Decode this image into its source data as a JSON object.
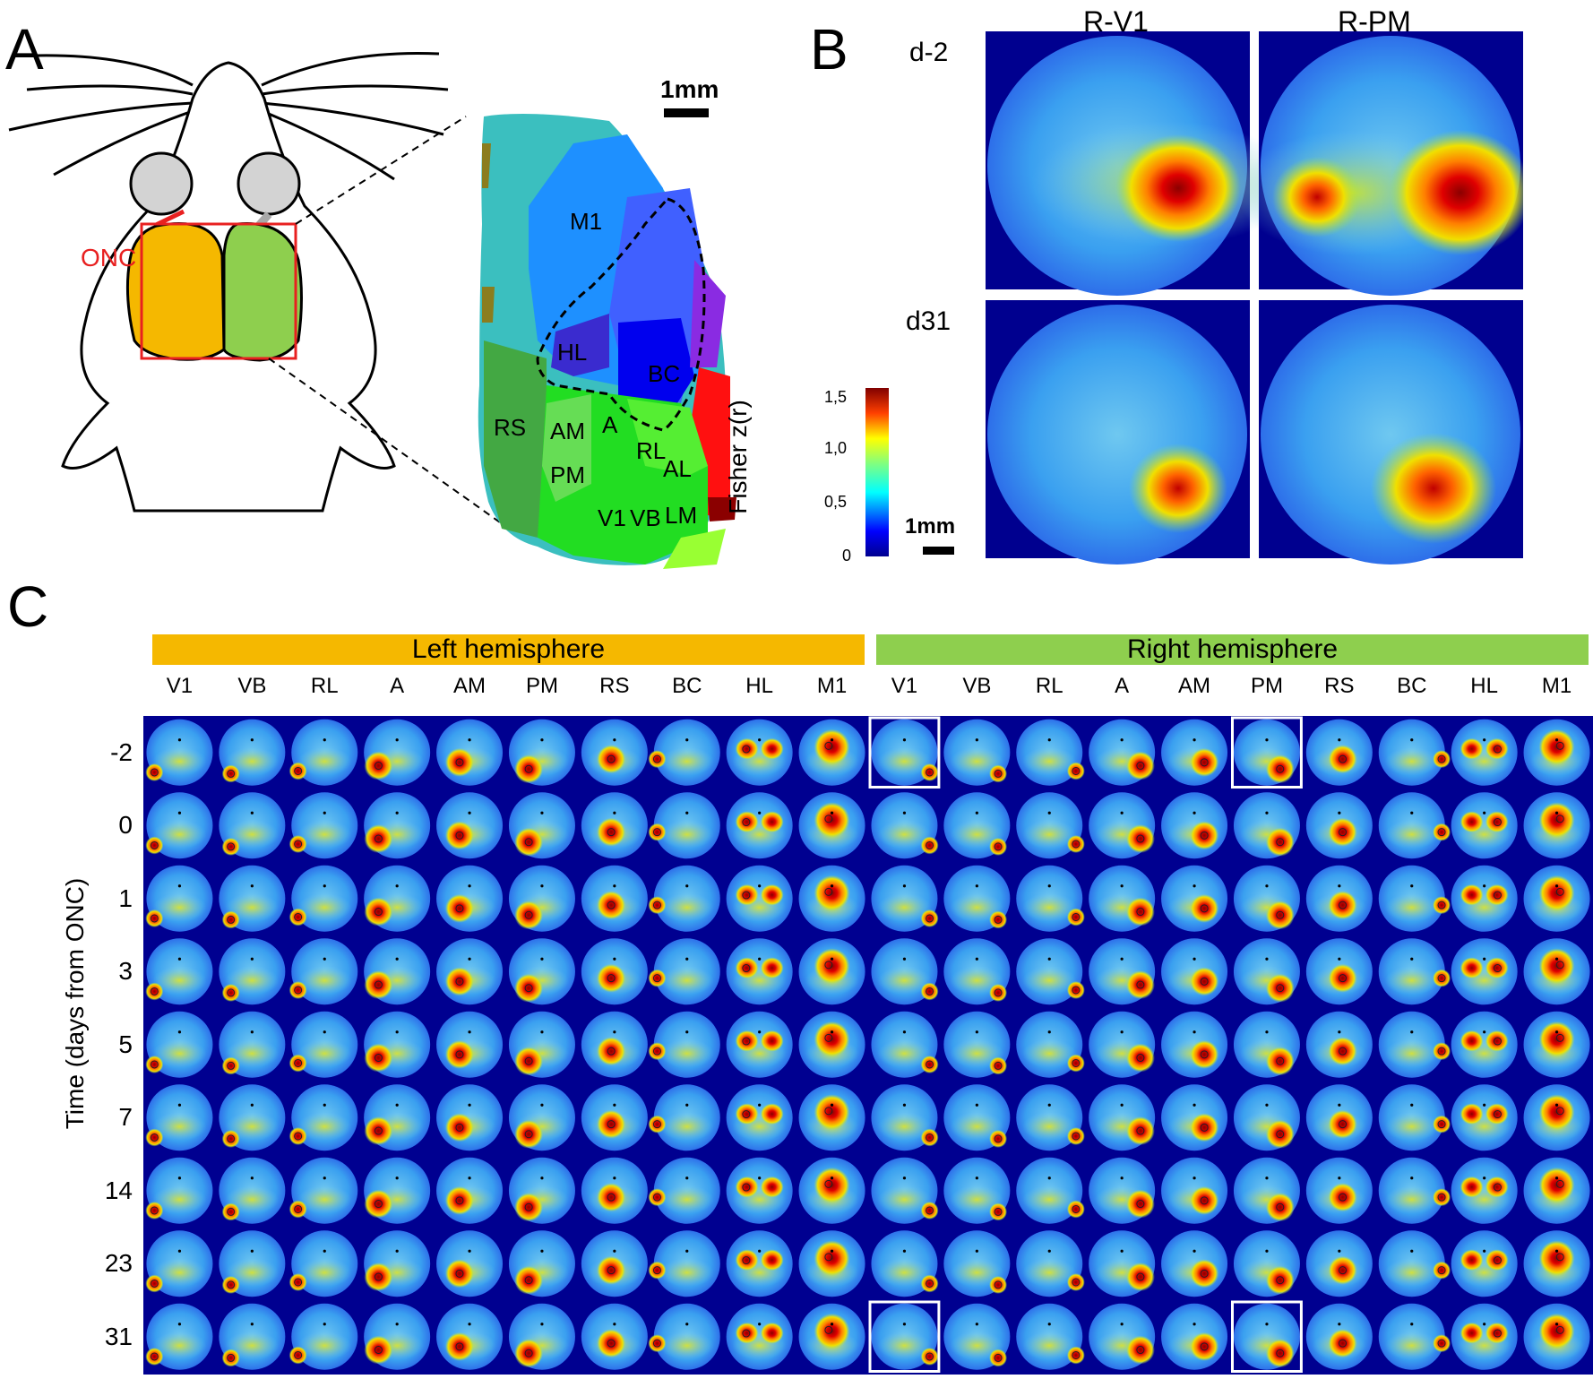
{
  "panels": {
    "a": "A",
    "b": "B",
    "c": "C"
  },
  "panel_a": {
    "onc_label": "ONC",
    "scale_label": "1mm",
    "regions": [
      "M1",
      "HL",
      "BC",
      "RS",
      "AM",
      "A",
      "RL",
      "AL",
      "PM",
      "V1",
      "VB",
      "LM"
    ],
    "colors": {
      "left_hemisphere": "#F5B800",
      "right_hemisphere": "#8ECF4E",
      "roi": "#E82020"
    }
  },
  "panel_b": {
    "columns": [
      "R-V1",
      "R-PM"
    ],
    "rows": [
      "d-2",
      "d31"
    ],
    "colorbar": {
      "label": "Fisher z(r)",
      "ticks": [
        "1,5",
        "1,0",
        "0,5",
        "0"
      ],
      "range": [
        0,
        1.5
      ]
    },
    "scale_label": "1mm"
  },
  "panel_c": {
    "left_label": "Left hemisphere",
    "right_label": "Right hemisphere",
    "left_color": "#F5B800",
    "right_color": "#8ECF4E",
    "columns": [
      "V1",
      "VB",
      "RL",
      "A",
      "AM",
      "PM",
      "RS",
      "BC",
      "HL",
      "M1",
      "V1",
      "VB",
      "RL",
      "A",
      "AM",
      "PM",
      "RS",
      "BC",
      "HL",
      "M1"
    ],
    "rows": [
      "-2",
      "0",
      "1",
      "3",
      "5",
      "7",
      "14",
      "23",
      "31"
    ],
    "ylabel": "Time (days from ONC)",
    "highlight_columns": [
      10,
      15
    ],
    "highlight_rows": [
      0,
      8
    ]
  }
}
